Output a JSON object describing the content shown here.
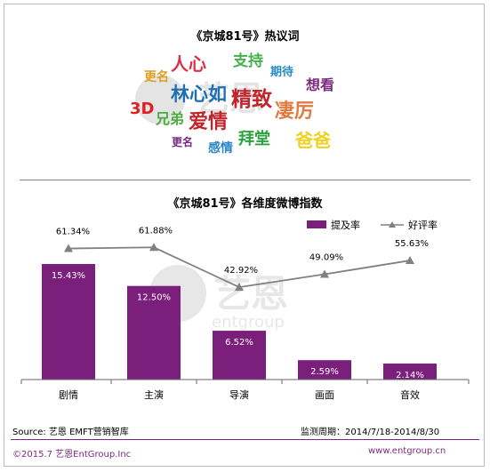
{
  "wordcloud": {
    "title": "《京城81号》热议词",
    "words": [
      {
        "text": "人心",
        "color": "#d6344a"
      },
      {
        "text": "支持",
        "color": "#43b04c"
      },
      {
        "text": "更名",
        "color": "#e0a020"
      },
      {
        "text": "期待",
        "color": "#2b88c8"
      },
      {
        "text": "想看",
        "color": "#7a2a7f"
      },
      {
        "text": "林心如",
        "color": "#1f6fb5"
      },
      {
        "text": "精致",
        "color": "#c0252c"
      },
      {
        "text": "3D",
        "color": "#e02020"
      },
      {
        "text": "凄厉",
        "color": "#e07a40"
      },
      {
        "text": "兄弟",
        "color": "#4bab3f"
      },
      {
        "text": "爱情",
        "color": "#c0252c"
      },
      {
        "text": "拜堂",
        "color": "#2aa33c"
      },
      {
        "text": "爸爸",
        "color": "#f0d020"
      },
      {
        "text": "更名",
        "color": "#7a2a7f"
      },
      {
        "text": "感情",
        "color": "#2b88c8"
      }
    ]
  },
  "chart_data": {
    "type": "bar",
    "title": "《京城81号》各维度微博指数",
    "categories": [
      "剧情",
      "主演",
      "导演",
      "画面",
      "音效"
    ],
    "series": [
      {
        "name": "提及率",
        "type": "bar",
        "values": [
          15.43,
          12.5,
          6.52,
          2.59,
          2.14
        ],
        "labels": [
          "15.43%",
          "12.50%",
          "6.52%",
          "2.59%",
          "2.14%"
        ],
        "color": "#7a1f7c"
      },
      {
        "name": "好评率",
        "type": "line",
        "values": [
          61.34,
          61.88,
          42.92,
          49.09,
          55.63
        ],
        "labels": [
          "61.34%",
          "61.88%",
          "42.92%",
          "49.09%",
          "55.63%"
        ],
        "color": "#808080"
      }
    ],
    "legend_position": "top-right",
    "grid": false
  },
  "footer": {
    "source": "Source: 艺恩 EMFT营销智库",
    "period": "监测周期：2014/7/18-2014/8/30",
    "copyright": "©2015.7 艺恩EntGroup.Inc",
    "website": "www.entgroup.cn"
  }
}
